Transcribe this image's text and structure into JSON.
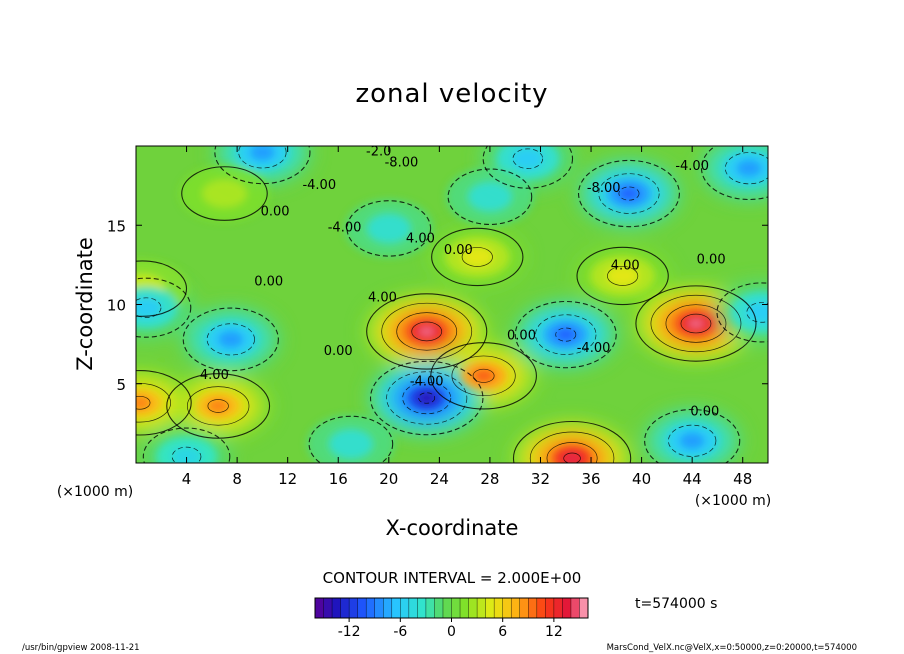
{
  "chart_data": {
    "type": "heatmap",
    "title": "zonal velocity",
    "xlabel": "X-coordinate",
    "ylabel": "Z-coordinate",
    "x_unit": "(×1000 m)",
    "y_unit": "(×1000 m)",
    "x_ticks": [
      4,
      8,
      12,
      16,
      20,
      24,
      28,
      32,
      36,
      40,
      44,
      48
    ],
    "y_ticks": [
      5,
      10,
      15
    ],
    "xlim": [
      0,
      50
    ],
    "ylim": [
      0,
      20
    ],
    "contour_interval_text": "CONTOUR INTERVAL = 2.000E+00",
    "time_text": "t=574000 s",
    "colorbar": {
      "min": -16,
      "max": 16,
      "ticks": [
        -12,
        -6,
        0,
        6,
        12
      ]
    },
    "contour_labels": [
      {
        "text": "-2.0",
        "x": 19.2,
        "y": 19.4
      },
      {
        "text": "-8.00",
        "x": 21.0,
        "y": 18.7
      },
      {
        "text": "-4.00",
        "x": 14.5,
        "y": 17.3
      },
      {
        "text": "-8.00",
        "x": 37.0,
        "y": 17.1
      },
      {
        "text": "-4.00",
        "x": 44.0,
        "y": 18.5
      },
      {
        "text": "0.00",
        "x": 11.0,
        "y": 15.6
      },
      {
        "text": "-4.00",
        "x": 16.5,
        "y": 14.6
      },
      {
        "text": "4.00",
        "x": 22.5,
        "y": 13.9
      },
      {
        "text": "0.00",
        "x": 25.5,
        "y": 13.2
      },
      {
        "text": "0.00",
        "x": 10.5,
        "y": 11.2
      },
      {
        "text": "4.00",
        "x": 19.5,
        "y": 10.2
      },
      {
        "text": "4.00",
        "x": 38.7,
        "y": 12.2
      },
      {
        "text": "0.00",
        "x": 45.5,
        "y": 12.6
      },
      {
        "text": "0.00",
        "x": 16.0,
        "y": 6.8
      },
      {
        "text": "4.00",
        "x": 6.2,
        "y": 5.3
      },
      {
        "text": "-4.00",
        "x": 23.0,
        "y": 4.9
      },
      {
        "text": "0.00",
        "x": 30.5,
        "y": 7.8
      },
      {
        "text": "-4.00",
        "x": 36.2,
        "y": 7.0
      },
      {
        "text": "0.00",
        "x": 45.0,
        "y": 3.0
      }
    ],
    "features": [
      {
        "kind": "jet",
        "x": 23.0,
        "y": 8.3,
        "value": 15
      },
      {
        "kind": "jet",
        "x": 44.3,
        "y": 8.8,
        "value": 15
      },
      {
        "kind": "jet",
        "x": 34.5,
        "y": 0.3,
        "value": 14
      },
      {
        "kind": "jet",
        "x": 6.5,
        "y": 3.6,
        "value": 9
      },
      {
        "kind": "jet",
        "x": 0.3,
        "y": 3.8,
        "value": 9
      },
      {
        "kind": "jet",
        "x": 27.5,
        "y": 5.5,
        "value": 10
      },
      {
        "kind": "jet",
        "x": 27.0,
        "y": 13.0,
        "value": 5
      },
      {
        "kind": "jet",
        "x": 38.5,
        "y": 11.8,
        "value": 5
      },
      {
        "kind": "jet",
        "x": 7.0,
        "y": 17.0,
        "value": 3
      },
      {
        "kind": "jet",
        "x": 0.5,
        "y": 11.0,
        "value": 4
      },
      {
        "kind": "vortex",
        "x": 23.0,
        "y": 4.1,
        "value": -14
      },
      {
        "kind": "vortex",
        "x": 34.0,
        "y": 8.1,
        "value": -10
      },
      {
        "kind": "vortex",
        "x": 7.5,
        "y": 7.8,
        "value": -8
      },
      {
        "kind": "vortex",
        "x": 0.8,
        "y": 9.8,
        "value": -6
      },
      {
        "kind": "vortex",
        "x": 49.5,
        "y": 9.5,
        "value": -6
      },
      {
        "kind": "vortex",
        "x": 44.0,
        "y": 1.4,
        "value": -8
      },
      {
        "kind": "vortex",
        "x": 4.0,
        "y": 0.4,
        "value": -5
      },
      {
        "kind": "vortex",
        "x": 39.0,
        "y": 17.0,
        "value": -10
      },
      {
        "kind": "vortex",
        "x": 10.0,
        "y": 19.6,
        "value": -8
      },
      {
        "kind": "vortex",
        "x": 48.5,
        "y": 18.6,
        "value": -8
      },
      {
        "kind": "vortex",
        "x": 31.0,
        "y": 19.2,
        "value": -6
      },
      {
        "kind": "vortex",
        "x": 20.0,
        "y": 14.8,
        "value": -4
      },
      {
        "kind": "vortex",
        "x": 17.0,
        "y": 1.2,
        "value": -4
      },
      {
        "kind": "vortex",
        "x": 28.0,
        "y": 16.8,
        "value": -4
      }
    ]
  },
  "footer": {
    "left": "/usr/bin/gpview   2008-11-21",
    "right": "MarsCond_VelX.nc@VelX,x=0:50000,z=0:20000,t=574000"
  }
}
